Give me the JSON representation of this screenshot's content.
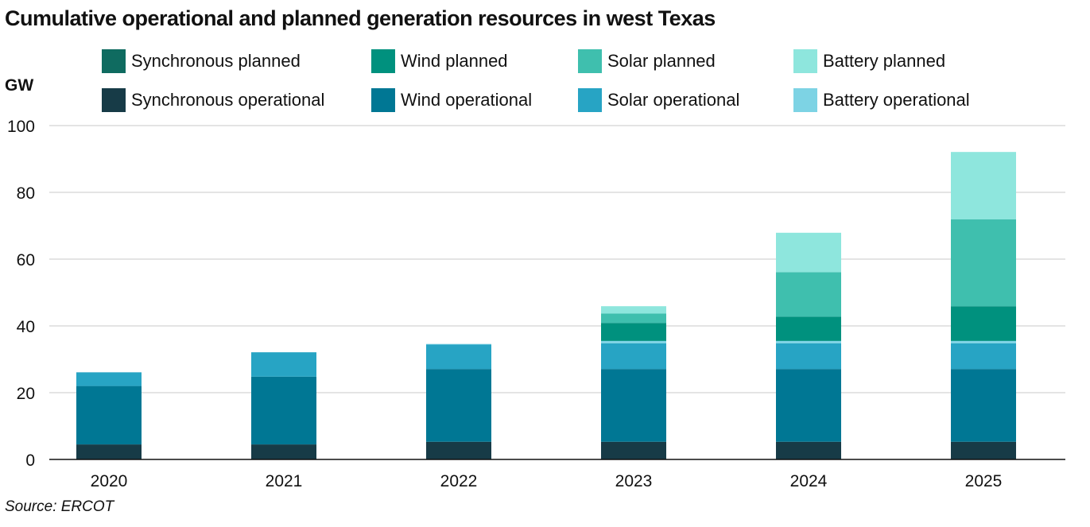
{
  "header": {
    "title": "Cumulative operational and planned generation resources in west Texas",
    "source": "Source: ERCOT"
  },
  "chart_data": {
    "type": "bar",
    "stacked": true,
    "title": "Cumulative operational and planned generation resources in west Texas",
    "xlabel": "",
    "ylabel": "GW",
    "ylim": [
      0,
      100
    ],
    "yticks": [
      0,
      20,
      40,
      60,
      80,
      100
    ],
    "grid": true,
    "legend_position": "top",
    "categories": [
      "2020",
      "2021",
      "2022",
      "2023",
      "2024",
      "2025"
    ],
    "series": [
      {
        "name": "Synchronous operational",
        "color": "#173b47",
        "values": [
          4.5,
          4.5,
          5.3,
          5.3,
          5.3,
          5.3
        ]
      },
      {
        "name": "Wind operational",
        "color": "#007794",
        "values": [
          17.5,
          20.3,
          21.8,
          21.8,
          21.8,
          21.8
        ]
      },
      {
        "name": "Solar operational",
        "color": "#27a4c4",
        "values": [
          4.1,
          7.3,
          7.3,
          7.7,
          7.7,
          7.7
        ]
      },
      {
        "name": "Battery operational",
        "color": "#7dd3e4",
        "values": [
          0,
          0,
          0.2,
          0.7,
          0.7,
          0.7
        ]
      },
      {
        "name": "Synchronous planned",
        "color": "#0f6b60",
        "values": [
          0,
          0,
          0,
          0,
          0,
          0
        ]
      },
      {
        "name": "Wind planned",
        "color": "#00917e",
        "values": [
          0,
          0,
          0,
          5.4,
          7.3,
          10.4
        ]
      },
      {
        "name": "Solar planned",
        "color": "#3fbfae",
        "values": [
          0,
          0,
          0,
          2.8,
          13.3,
          26.0
        ]
      },
      {
        "name": "Battery planned",
        "color": "#8ee6dd",
        "values": [
          0,
          0,
          0,
          2.2,
          11.8,
          20.2
        ]
      }
    ],
    "legend_order": [
      "Synchronous planned",
      "Wind planned",
      "Solar planned",
      "Battery planned",
      "Synchronous operational",
      "Wind operational",
      "Solar operational",
      "Battery operational"
    ]
  }
}
